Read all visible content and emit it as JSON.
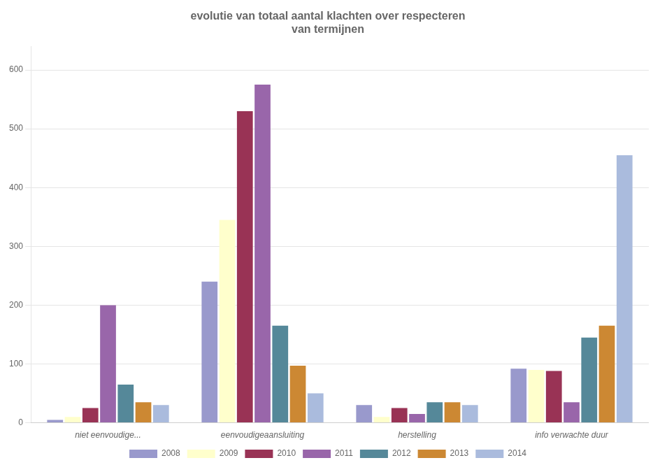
{
  "chart_data": {
    "type": "bar",
    "title": "evolutie van totaal aantal klachten over respecteren\nvan termijnen",
    "categories": [
      "niet eenvoudige...",
      "eenvoudigeaansluiting",
      "herstelling",
      "info verwachte duur"
    ],
    "series": [
      {
        "name": "2008",
        "color": "#9999cc",
        "values": [
          5,
          240,
          30,
          92
        ]
      },
      {
        "name": "2009",
        "color": "#ffffcc",
        "values": [
          10,
          345,
          10,
          90
        ]
      },
      {
        "name": "2010",
        "color": "#993355",
        "values": [
          25,
          530,
          25,
          88
        ]
      },
      {
        "name": "2011",
        "color": "#9966aa",
        "values": [
          200,
          575,
          15,
          35
        ]
      },
      {
        "name": "2012",
        "color": "#558899",
        "values": [
          65,
          165,
          35,
          145
        ]
      },
      {
        "name": "2013",
        "color": "#cc8833",
        "values": [
          35,
          97,
          35,
          165
        ]
      },
      {
        "name": "2014",
        "color": "#aabbdd",
        "values": [
          30,
          50,
          30,
          455
        ]
      }
    ],
    "ylim": [
      0,
      640
    ],
    "yticks": [
      0,
      100,
      200,
      300,
      400,
      500,
      600
    ],
    "grid": true,
    "legend": "bottom"
  }
}
